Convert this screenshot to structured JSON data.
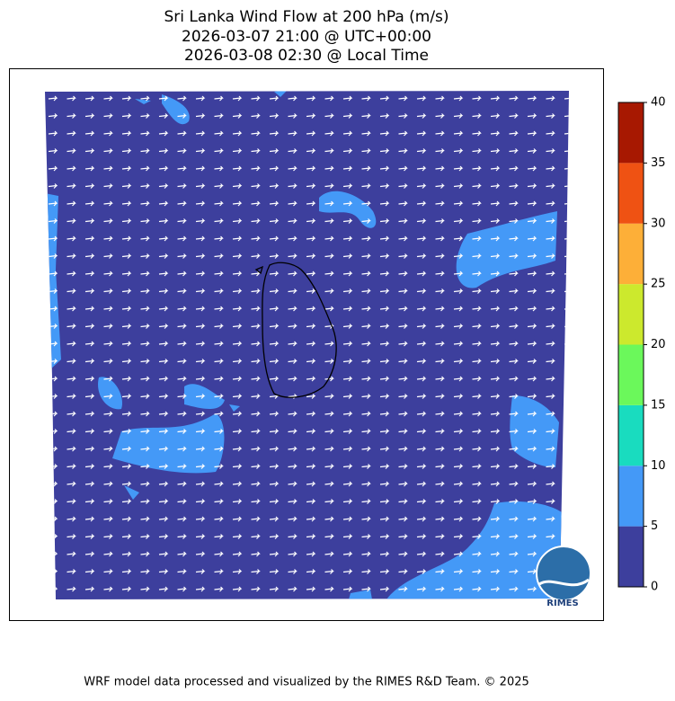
{
  "title": [
    "Sri Lanka Wind Flow at 200 hPa (m/s)",
    "2026-03-07 21:00 @ UTC+00:00",
    "2026-03-08 02:30 @ Local Time"
  ],
  "colorbar": {
    "lim": [
      0,
      40
    ],
    "ticks": [
      0,
      5,
      10,
      15,
      20,
      25,
      30,
      35,
      40
    ],
    "colors": [
      "#3d3f9d",
      "#4499f7",
      "#19dcbf",
      "#6bf85b",
      "#cce92d",
      "#fdaf38",
      "#ef5213",
      "#a71801"
    ]
  },
  "logo": "RIMES",
  "footer": "WRF model data processed and visualized by the RIMES R&D Team. © 2025"
}
